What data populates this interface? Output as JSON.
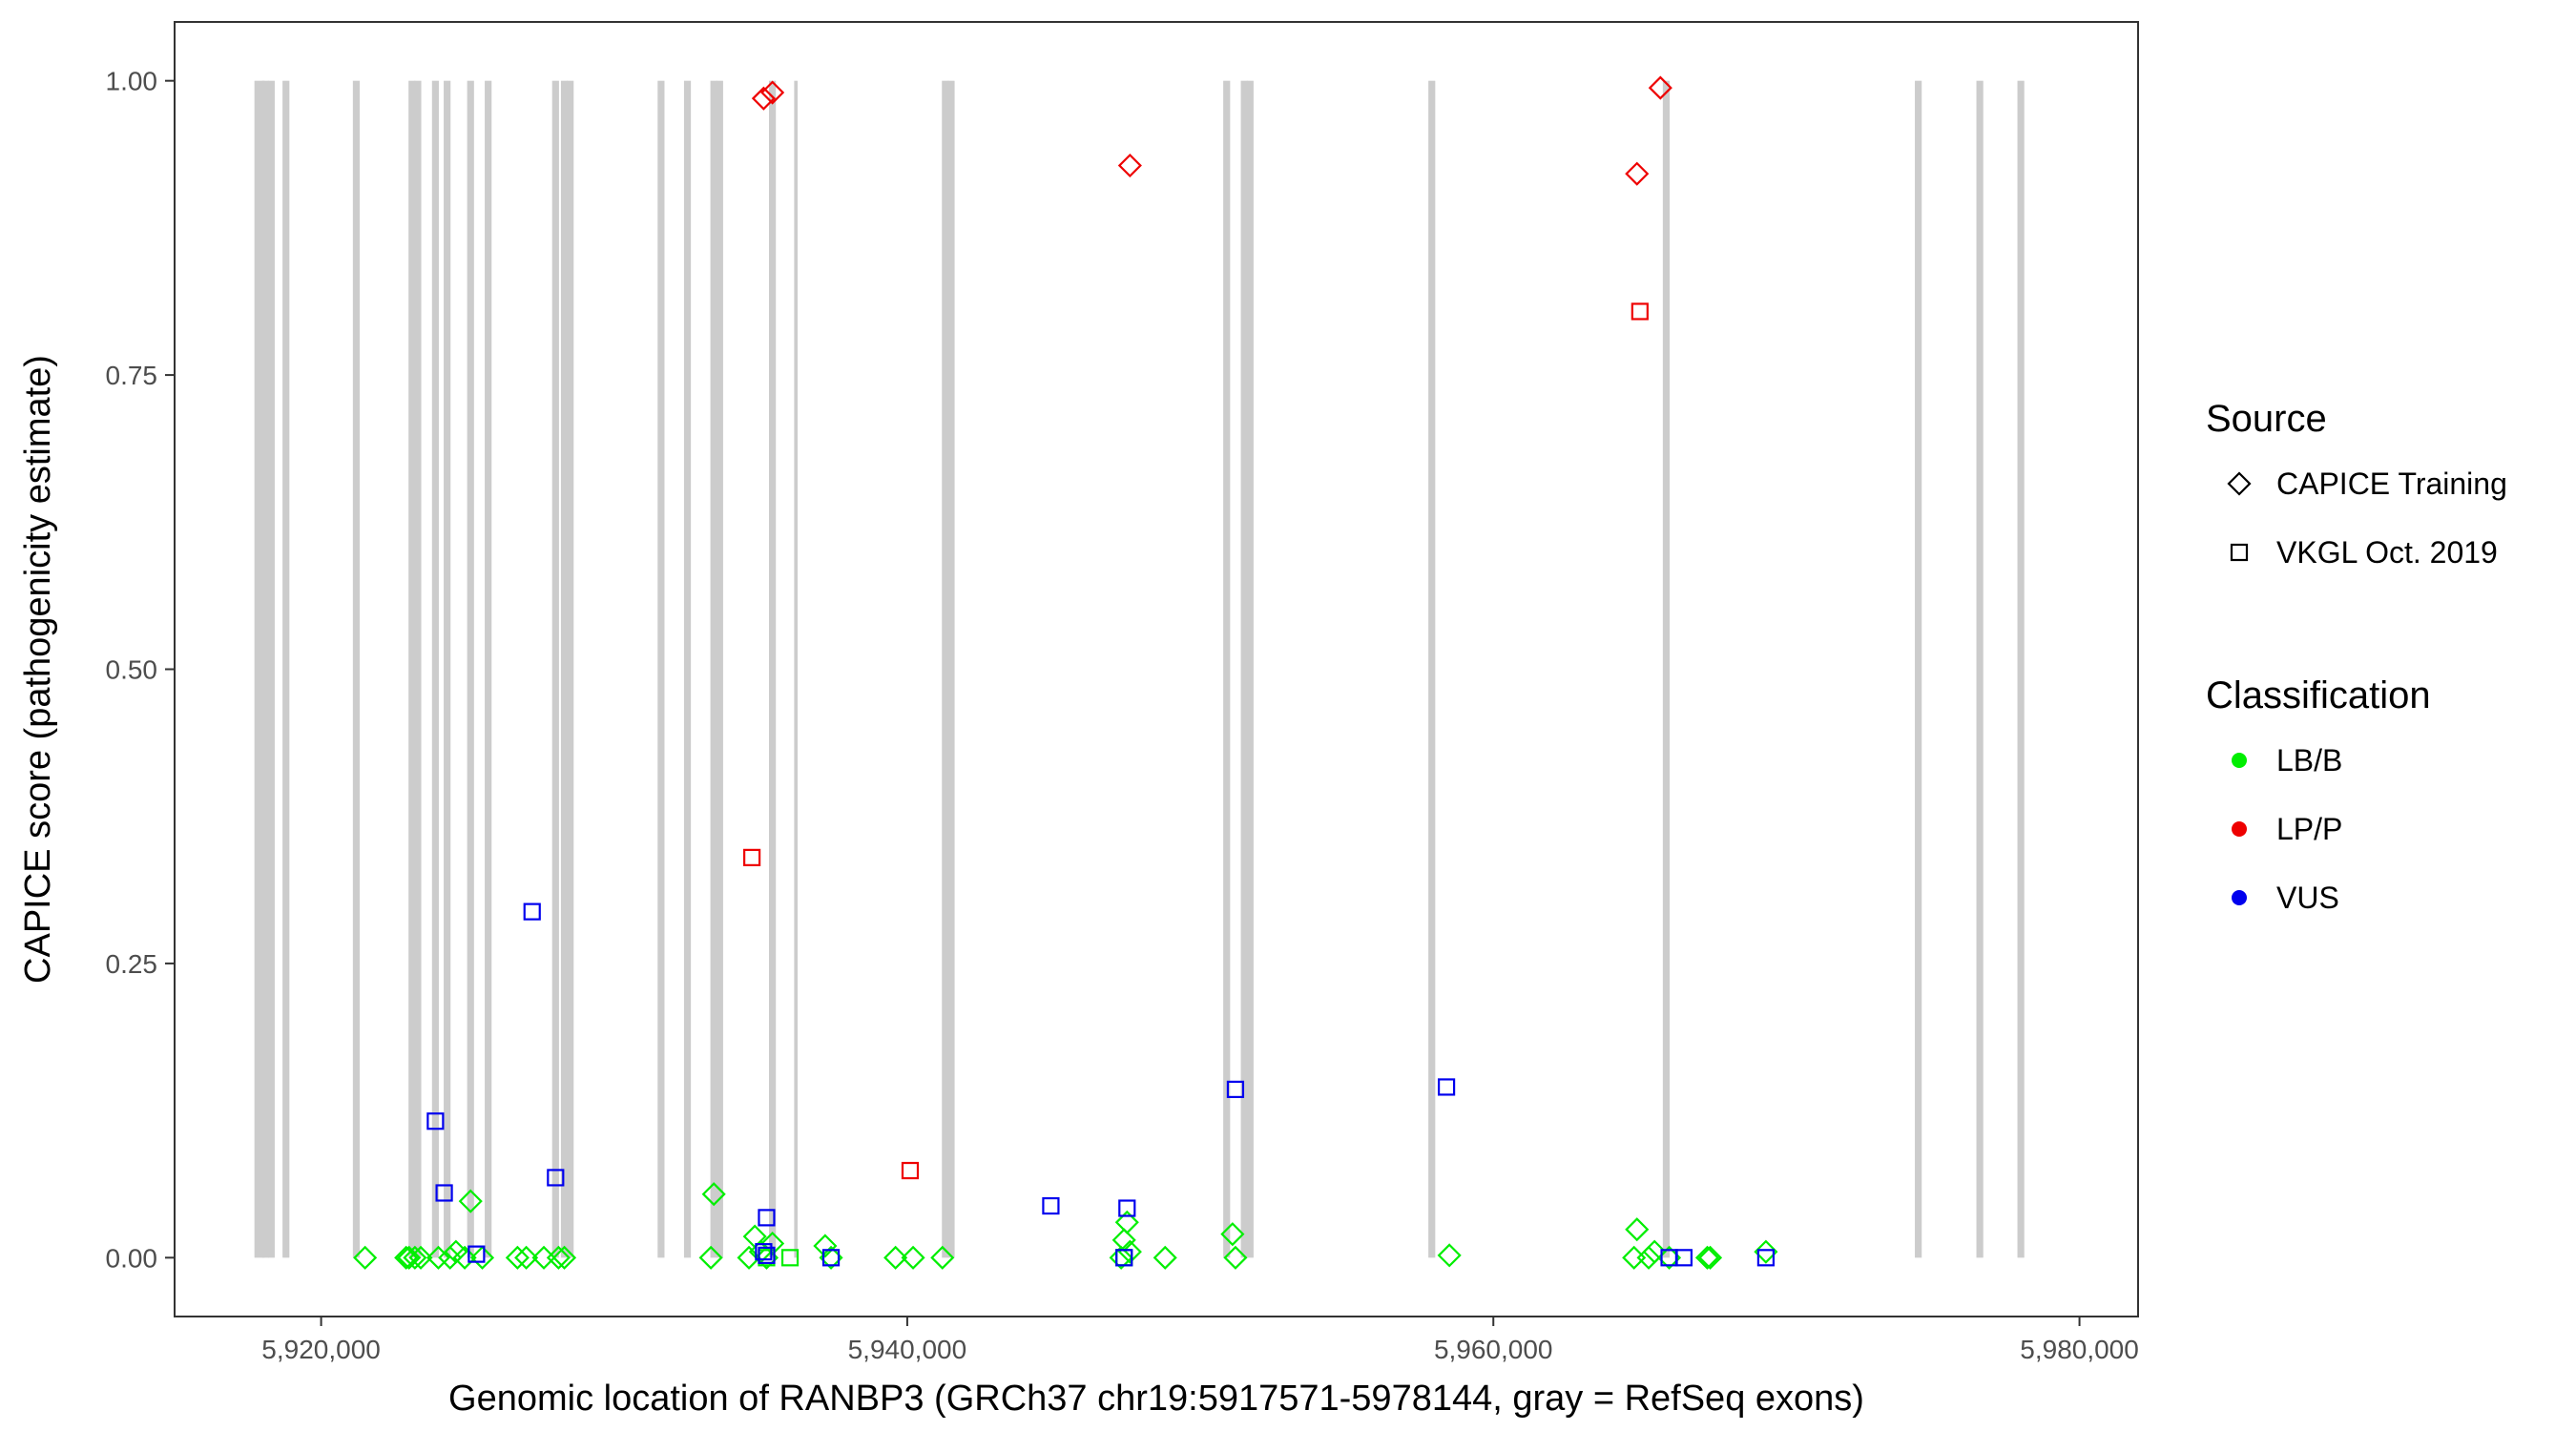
{
  "chart_data": {
    "type": "scatter",
    "xlabel": "Genomic location of RANBP3 (GRCh37 chr19:5917571-5978144, gray = RefSeq exons)",
    "ylabel": "CAPICE score (pathogenicity estimate)",
    "xlim": [
      5915000,
      5982000
    ],
    "ylim": [
      -0.05,
      1.05
    ],
    "x_ticks": [
      5920000,
      5940000,
      5960000,
      5980000
    ],
    "x_tick_labels": [
      "5,920,000",
      "5,940,000",
      "5,960,000",
      "5,980,000"
    ],
    "y_ticks": [
      0,
      0.25,
      0.5,
      0.75,
      1.0
    ],
    "y_tick_labels": [
      "0.00",
      "0.25",
      "0.50",
      "0.75",
      "1.00"
    ],
    "grid": false,
    "legend_position": "right",
    "exon_color": "#cccccc",
    "exons": [
      5917900,
      5918100,
      5918300,
      5918800,
      5921200,
      5923100,
      5923300,
      5923900,
      5924300,
      5925100,
      5925700,
      5928000,
      5928300,
      5928500,
      5931600,
      5932500,
      5933400,
      5933600,
      5935400,
      5936200,
      5941300,
      5941500,
      5950900,
      5951500,
      5951700,
      5957900,
      5965900,
      5974500,
      5976600,
      5978000
    ],
    "exon_widths": [
      3,
      2,
      2,
      2,
      2,
      2,
      2,
      2,
      2,
      2,
      2,
      2,
      2,
      2,
      2,
      2,
      2,
      2,
      2,
      1,
      2,
      2,
      2,
      2,
      2,
      2,
      2,
      2,
      2,
      2
    ],
    "legends": {
      "source": {
        "title": "Source",
        "items": [
          {
            "label": "CAPICE Training",
            "shape": "diamond"
          },
          {
            "label": "VKGL Oct. 2019",
            "shape": "square"
          }
        ]
      },
      "classification": {
        "title": "Classification",
        "items": [
          {
            "label": "LB/B",
            "color": "#00ee00"
          },
          {
            "label": "LP/P",
            "color": "#ee0000"
          },
          {
            "label": "VUS",
            "color": "#0000ee"
          }
        ]
      }
    },
    "colors": {
      "LB/B": "#00ee00",
      "LP/P": "#ee0000",
      "VUS": "#0000ee"
    },
    "series": [
      {
        "source": "CAPICE Training",
        "classification": "LB/B",
        "points": [
          [
            5921500,
            0.0
          ],
          [
            5922900,
            0.0
          ],
          [
            5923000,
            0.0
          ],
          [
            5923200,
            0.0
          ],
          [
            5923400,
            0.0
          ],
          [
            5924000,
            0.0
          ],
          [
            5924400,
            0.0
          ],
          [
            5924600,
            0.005
          ],
          [
            5924900,
            0.0
          ],
          [
            5925100,
            0.048
          ],
          [
            5925500,
            0.0
          ],
          [
            5926700,
            0.0
          ],
          [
            5927000,
            0.0
          ],
          [
            5927600,
            0.0
          ],
          [
            5928100,
            0.0
          ],
          [
            5928300,
            0.0
          ],
          [
            5933300,
            0.0
          ],
          [
            5933400,
            0.054
          ],
          [
            5934600,
            0.0
          ],
          [
            5934800,
            0.018
          ],
          [
            5935000,
            0.005
          ],
          [
            5935200,
            0.0
          ],
          [
            5935400,
            0.012
          ],
          [
            5937200,
            0.01
          ],
          [
            5937400,
            0.0
          ],
          [
            5939600,
            0.0
          ],
          [
            5940200,
            0.0
          ],
          [
            5941200,
            0.0
          ],
          [
            5947300,
            0.0
          ],
          [
            5947400,
            0.015
          ],
          [
            5947500,
            0.03
          ],
          [
            5947600,
            0.005
          ],
          [
            5948800,
            0.0
          ],
          [
            5951100,
            0.02
          ],
          [
            5951200,
            0.0
          ],
          [
            5958500,
            0.002
          ],
          [
            5964800,
            0.0
          ],
          [
            5964900,
            0.024
          ],
          [
            5965300,
            0.0
          ],
          [
            5965500,
            0.005
          ],
          [
            5966000,
            0.0
          ],
          [
            5967300,
            0.0
          ],
          [
            5967400,
            0.0
          ],
          [
            5969300,
            0.005
          ]
        ]
      },
      {
        "source": "CAPICE Training",
        "classification": "LP/P",
        "points": [
          [
            5935100,
            0.985
          ],
          [
            5935400,
            0.99
          ],
          [
            5947600,
            0.928
          ],
          [
            5964900,
            0.921
          ],
          [
            5965700,
            0.994
          ]
        ]
      },
      {
        "source": "VKGL Oct. 2019",
        "classification": "LB/B",
        "points": [
          [
            5935200,
            0.0
          ],
          [
            5936000,
            0.0
          ],
          [
            5947400,
            0.0
          ]
        ]
      },
      {
        "source": "VKGL Oct. 2019",
        "classification": "LP/P",
        "points": [
          [
            5934700,
            0.34
          ],
          [
            5940100,
            0.074
          ],
          [
            5965000,
            0.804
          ]
        ]
      },
      {
        "source": "VKGL Oct. 2019",
        "classification": "VUS",
        "points": [
          [
            5923900,
            0.116
          ],
          [
            5924200,
            0.055
          ],
          [
            5925300,
            0.003
          ],
          [
            5927200,
            0.294
          ],
          [
            5928000,
            0.068
          ],
          [
            5935200,
            0.034
          ],
          [
            5935100,
            0.005
          ],
          [
            5935200,
            0.002
          ],
          [
            5937400,
            0.0
          ],
          [
            5944900,
            0.044
          ],
          [
            5947500,
            0.042
          ],
          [
            5947400,
            0.0
          ],
          [
            5951200,
            0.143
          ],
          [
            5958400,
            0.145
          ],
          [
            5966000,
            0.0
          ],
          [
            5966500,
            0.0
          ],
          [
            5969300,
            0.0
          ]
        ]
      }
    ]
  }
}
